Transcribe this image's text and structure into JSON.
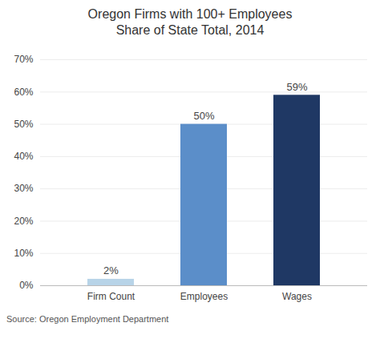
{
  "chart_data": {
    "type": "bar",
    "title": "Oregon Firms with 100+ Employees\nShare of State Total, 2014",
    "categories": [
      "Firm Count",
      "Employees",
      "Wages"
    ],
    "values": [
      2,
      50,
      59
    ],
    "value_labels": [
      "2%",
      "50%",
      "59%"
    ],
    "data_labels": true,
    "colors": [
      "#b8d4e8",
      "#5b8ec9",
      "#1f3864"
    ],
    "ylim": [
      0,
      70
    ],
    "yticks": [
      {
        "value": 0,
        "label": "0%"
      },
      {
        "value": 10,
        "label": "10%"
      },
      {
        "value": 20,
        "label": "20%"
      },
      {
        "value": 30,
        "label": "30%"
      },
      {
        "value": 40,
        "label": "40%"
      },
      {
        "value": 50,
        "label": "50%"
      },
      {
        "value": 60,
        "label": "60%"
      },
      {
        "value": 70,
        "label": "70%"
      }
    ],
    "grid": true,
    "annotation": "Source: Oregon Employment Department"
  }
}
